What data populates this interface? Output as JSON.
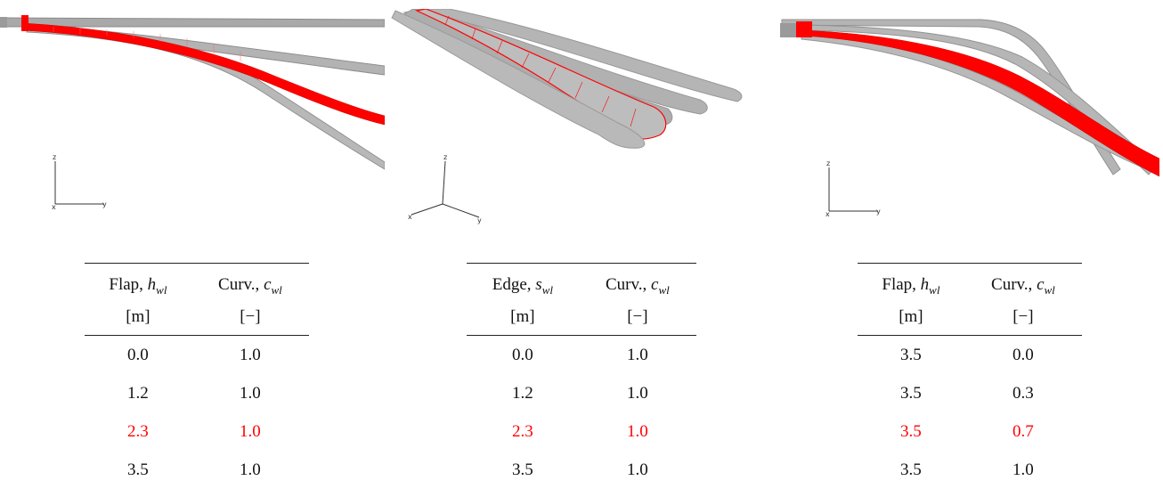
{
  "panels": [
    {
      "axes": {
        "z": "z",
        "x": "x",
        "y": "y"
      },
      "table": {
        "col1": {
          "label": "Flap, ",
          "sym": "h",
          "sub": "wl",
          "unit": "[m]"
        },
        "col2": {
          "label": "Curv., ",
          "sym": "c",
          "sub": "wl",
          "unit": "[−]"
        },
        "rows": [
          [
            "0.0",
            "1.0"
          ],
          [
            "1.2",
            "1.0"
          ],
          [
            "2.3",
            "1.0"
          ],
          [
            "3.5",
            "1.0"
          ]
        ],
        "highlight_row": 2
      }
    },
    {
      "axes": {
        "z": "z",
        "x": "x",
        "y": "y"
      },
      "table": {
        "col1": {
          "label": "Edge, ",
          "sym": "s",
          "sub": "wl",
          "unit": "[m]"
        },
        "col2": {
          "label": "Curv., ",
          "sym": "c",
          "sub": "wl",
          "unit": "[−]"
        },
        "rows": [
          [
            "0.0",
            "1.0"
          ],
          [
            "1.2",
            "1.0"
          ],
          [
            "2.3",
            "1.0"
          ],
          [
            "3.5",
            "1.0"
          ]
        ],
        "highlight_row": 2
      }
    },
    {
      "axes": {
        "z": "z",
        "x": "x",
        "y": "y"
      },
      "table": {
        "col1": {
          "label": "Flap, ",
          "sym": "h",
          "sub": "wl",
          "unit": "[m]"
        },
        "col2": {
          "label": "Curv., ",
          "sym": "c",
          "sub": "wl",
          "unit": "[−]"
        },
        "rows": [
          [
            "3.5",
            "0.0"
          ],
          [
            "3.5",
            "0.3"
          ],
          [
            "3.5",
            "0.7"
          ],
          [
            "3.5",
            "1.0"
          ]
        ],
        "highlight_row": 2
      }
    }
  ],
  "colors": {
    "blade_gray": "#a9a9a9",
    "blade_edge": "#8a8a8a",
    "highlight": "#ff0000"
  }
}
